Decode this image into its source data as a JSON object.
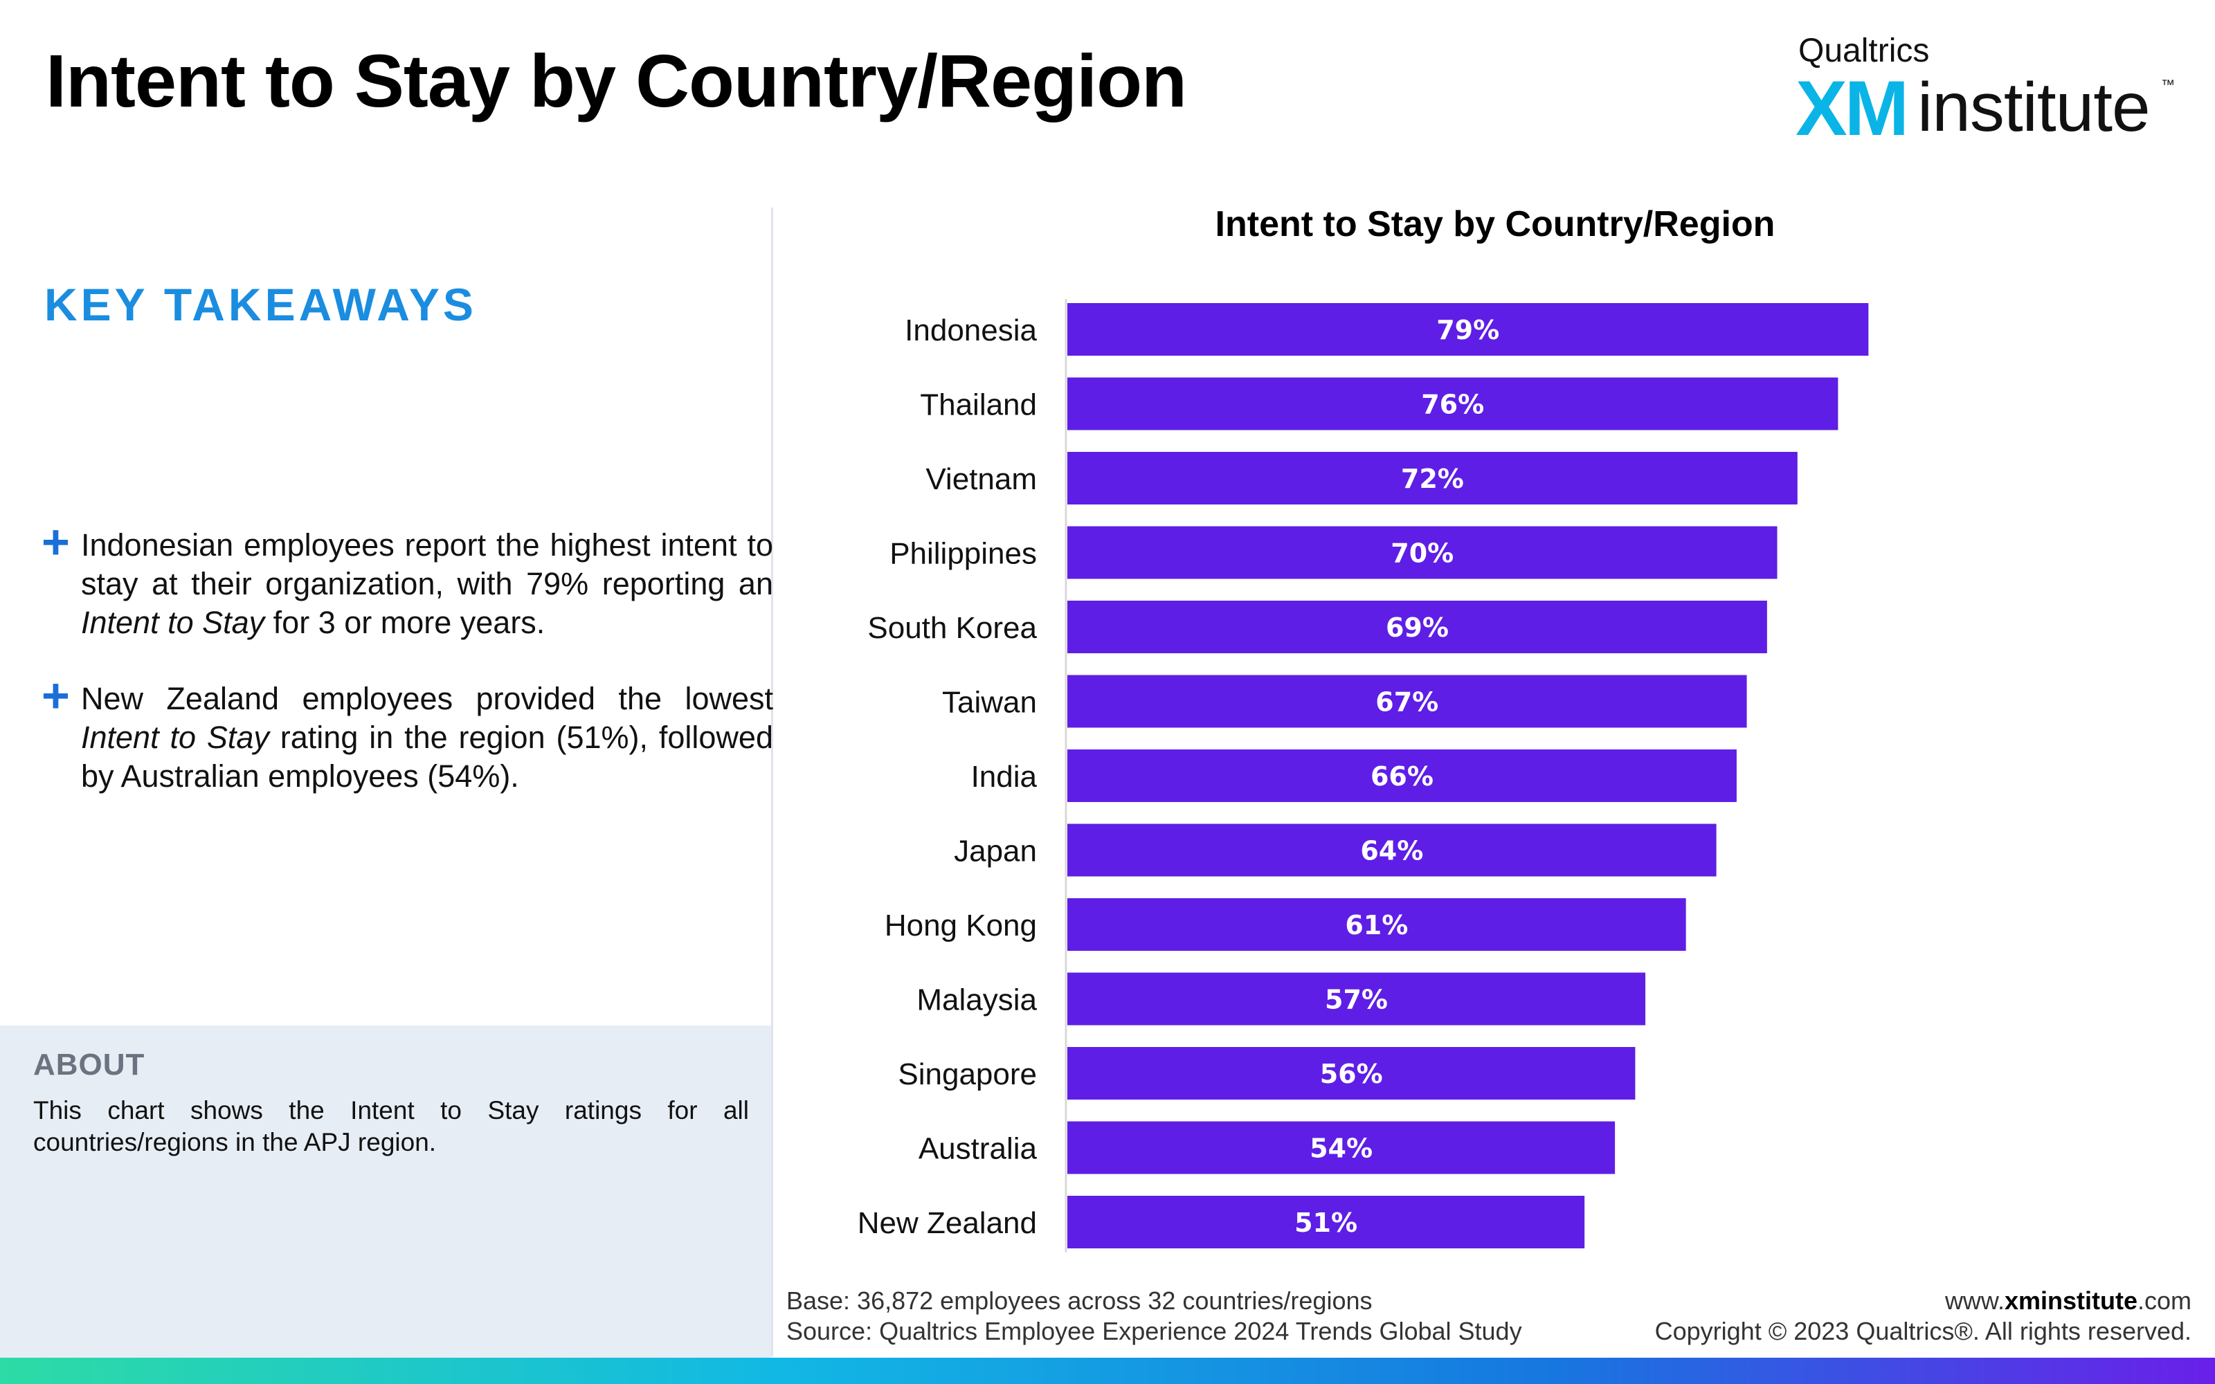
{
  "header": {
    "title": "Intent to Stay by Country/Region"
  },
  "logo": {
    "brand": "Qualtrics",
    "xm": "XM",
    "institute": "institute",
    "tm": "™"
  },
  "takeaways": {
    "title": "KEY TAKEAWAYS",
    "items": [
      {
        "pre": "Indonesian employees report the highest intent to stay at their organization, with 79% reporting an ",
        "em": "Intent to Stay",
        "post": " for 3 or more years."
      },
      {
        "pre": "New Zealand employees provided the lowest ",
        "em": "Intent to Stay",
        "post": " rating in the region (51%), followed by Australian employees (54%)."
      }
    ]
  },
  "about": {
    "title": "ABOUT",
    "text": "This chart shows the Intent to Stay ratings for all countries/regions  in the APJ region."
  },
  "chart_data": {
    "type": "bar",
    "orientation": "horizontal",
    "title": "Intent to Stay by Country/Region",
    "categories": [
      "Indonesia",
      "Thailand",
      "Vietnam",
      "Philippines",
      "South Korea",
      "Taiwan",
      "India",
      "Japan",
      "Hong Kong",
      "Malaysia",
      "Singapore",
      "Australia",
      "New Zealand"
    ],
    "values": [
      79,
      76,
      72,
      70,
      69,
      67,
      66,
      64,
      61,
      57,
      56,
      54,
      51
    ],
    "value_labels": [
      "79%",
      "76%",
      "72%",
      "70%",
      "69%",
      "67%",
      "66%",
      "64%",
      "61%",
      "57%",
      "56%",
      "54%",
      "51%"
    ],
    "xlim": [
      0,
      100
    ],
    "bar_color": "#5e1ee6",
    "label_color": "#ffffff",
    "grid": false
  },
  "footer": {
    "base": "Base: 36,872 employees across 32 countries/regions",
    "source": "Source: Qualtrics Employee Experience 2024 Trends Global Study",
    "url_prefix": "www.",
    "url_bold": "xminstitute",
    "url_suffix": ".com",
    "copyright": "Copyright © 2023 Qualtrics®. All rights reserved."
  }
}
